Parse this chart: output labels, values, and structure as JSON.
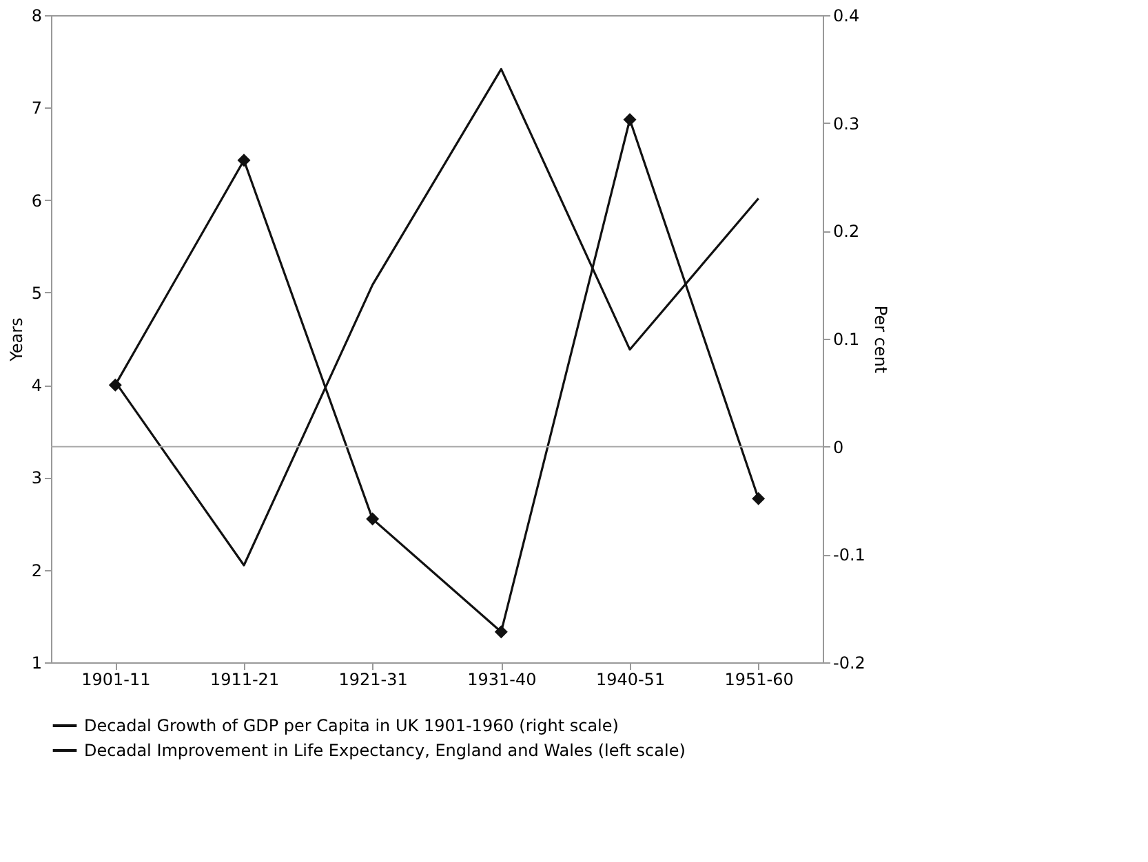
{
  "chart_data": {
    "type": "line",
    "categories": [
      "1901-11",
      "1911-21",
      "1921-31",
      "1931-40",
      "1940-51",
      "1951-60"
    ],
    "ylabel": "Years",
    "y2label": "Per cent",
    "ylim": [
      1,
      8
    ],
    "yticks": [
      1,
      2,
      3,
      4,
      5,
      6,
      7,
      8
    ],
    "y2lim": [
      -0.2,
      0.4
    ],
    "y2ticks": [
      -0.2,
      -0.1,
      0,
      0.1,
      0.2,
      0.3,
      0.4
    ],
    "series": [
      {
        "name": "Decadal Growth of GDP per Capita in UK 1901-1960 (right scale)",
        "color": "#111111",
        "axis": "y2",
        "marker": "none",
        "line_style": "solid",
        "values": [
          0.06,
          -0.11,
          0.15,
          0.35,
          0.09,
          0.23
        ]
      },
      {
        "name": "Decadal Improvement in Life Expectancy, England and Wales (left scale)",
        "color": "#111111",
        "axis": "y",
        "marker": "diamond",
        "line_style": "solid",
        "values": [
          4.0,
          6.43,
          2.55,
          1.33,
          6.87,
          2.77
        ]
      }
    ],
    "ref_lines": [
      {
        "axis": "y2",
        "value": 0,
        "color": "#aaaaaa"
      }
    ],
    "grid": false,
    "legend": "bottom"
  }
}
